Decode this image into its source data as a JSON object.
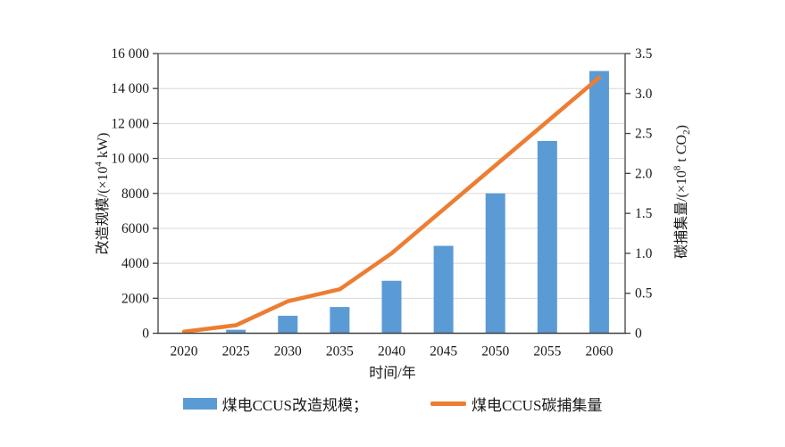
{
  "chart_data": {
    "type": "bar+line combo, dual y-axis",
    "categories": [
      "2020",
      "2025",
      "2030",
      "2035",
      "2040",
      "2045",
      "2050",
      "2055",
      "2060"
    ],
    "series": [
      {
        "name": "煤电CCUS改造规模",
        "type": "bar",
        "axis": "left",
        "color": "#5B9BD5",
        "values": [
          0,
          200,
          1000,
          1500,
          3000,
          5000,
          8000,
          11000,
          15000
        ]
      },
      {
        "name": "煤电CCUS碳捕集量",
        "type": "line",
        "axis": "right",
        "color": "#ED7D31",
        "values": [
          0.02,
          0.1,
          0.4,
          0.55,
          1.0,
          1.55,
          2.1,
          2.65,
          3.2
        ]
      }
    ],
    "left_axis": {
      "label": "改造规模/(×10⁴ kW)",
      "min": 0,
      "max": 16000,
      "tick_step": 2000,
      "tick_labels": [
        "0",
        "2000",
        "4000",
        "6000",
        "8000",
        "10 000",
        "12 000",
        "14 000",
        "16 000"
      ]
    },
    "right_axis": {
      "label": "碳捕集量/(×10⁸ t CO₂)",
      "min": 0,
      "max": 3.5,
      "tick_step": 0.5,
      "tick_labels": [
        "0",
        "0.5",
        "1.0",
        "1.5",
        "2.0",
        "2.5",
        "3.0",
        "3.5"
      ]
    },
    "x_axis": {
      "label": "时间/年"
    },
    "grid": "horizontal gridlines at each left-axis tick",
    "legend_position": "bottom-center"
  },
  "axis_titles": {
    "left": {
      "prefix": "改造规模/(×10",
      "sup": "4",
      "suffix": " kW)"
    },
    "right": {
      "prefix": "碳捕集量/(×10",
      "sup": "8",
      "mid": " t CO",
      "sub": "2",
      "suffix": ")"
    },
    "x": "时间/年"
  },
  "legend": {
    "items": [
      {
        "label": "煤电CCUS改造规模；",
        "swatch": "bar",
        "color": "#5B9BD5"
      },
      {
        "label": "煤电CCUS碳捕集量",
        "swatch": "line",
        "color": "#ED7D31"
      }
    ]
  },
  "colors": {
    "bar": "#5B9BD5",
    "line": "#ED7D31",
    "grid": "#D8D8D8",
    "axis": "#404040",
    "text": "#1a1a1a",
    "background": "#ffffff"
  }
}
